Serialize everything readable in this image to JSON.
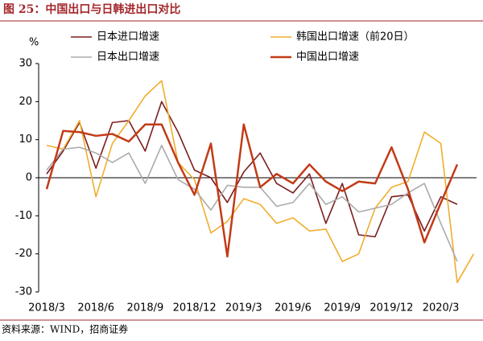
{
  "chart_data": {
    "type": "line",
    "title": "图 25：中国出口与日韩进出口对比",
    "y_label": "%",
    "source": "资料来源：WIND，招商证券",
    "categories": [
      "2018/3",
      null,
      null,
      "2018/6",
      null,
      null,
      "2018/9",
      null,
      null,
      "2018/12",
      null,
      null,
      "2019/3",
      null,
      null,
      "2019/6",
      null,
      null,
      "2019/9",
      null,
      null,
      "2019/12",
      null,
      null,
      "2020/3",
      null,
      null
    ],
    "series": [
      {
        "name": "日本进口增速",
        "color": "#7b1e1e",
        "values": [
          1,
          7,
          14.5,
          2.5,
          14.5,
          15,
          7,
          20,
          12,
          2,
          0,
          -6.5,
          1.5,
          6.5,
          -1.5,
          -4,
          1,
          -12,
          -1.5,
          -15,
          -15.5,
          -5,
          -4.5,
          -14,
          -5,
          -7,
          null
        ]
      },
      {
        "name": "韩国出口增速（前20日）",
        "color": "#f0ad2e",
        "values": [
          8.5,
          7.5,
          15,
          -5,
          9,
          15,
          21.5,
          25.5,
          4,
          -0.5,
          -14.5,
          -11.5,
          -5.5,
          -7,
          -12,
          -10.5,
          -14,
          -13.5,
          -22,
          -20,
          -8,
          -2.5,
          -1,
          12,
          9,
          -27.5,
          -20
        ]
      },
      {
        "name": "日本出口增速",
        "color": "#ababab",
        "values": [
          2,
          7.5,
          8,
          6.5,
          4,
          6.5,
          -1.5,
          8.5,
          -0.5,
          -3,
          -8.5,
          -2,
          -2.5,
          -2.5,
          -7.5,
          -6.5,
          -1.5,
          -7,
          -5,
          -9,
          -8,
          -7,
          -4,
          -1.5,
          -12,
          -22,
          null
        ]
      },
      {
        "name": "中国出口增速",
        "color": "#c23b17",
        "values": [
          -3,
          12.3,
          12,
          11,
          11.5,
          9.5,
          14,
          14,
          4,
          -4.5,
          9,
          -20.7,
          14,
          -2.5,
          1,
          -1.5,
          3.5,
          -1,
          -3.5,
          -1,
          -1.5,
          8,
          -3,
          -17,
          -6.6,
          3.5,
          null
        ]
      }
    ],
    "ylim": [
      -30,
      30
    ],
    "yticks": [
      -30,
      -20,
      -10,
      0,
      10,
      20,
      30
    ]
  }
}
